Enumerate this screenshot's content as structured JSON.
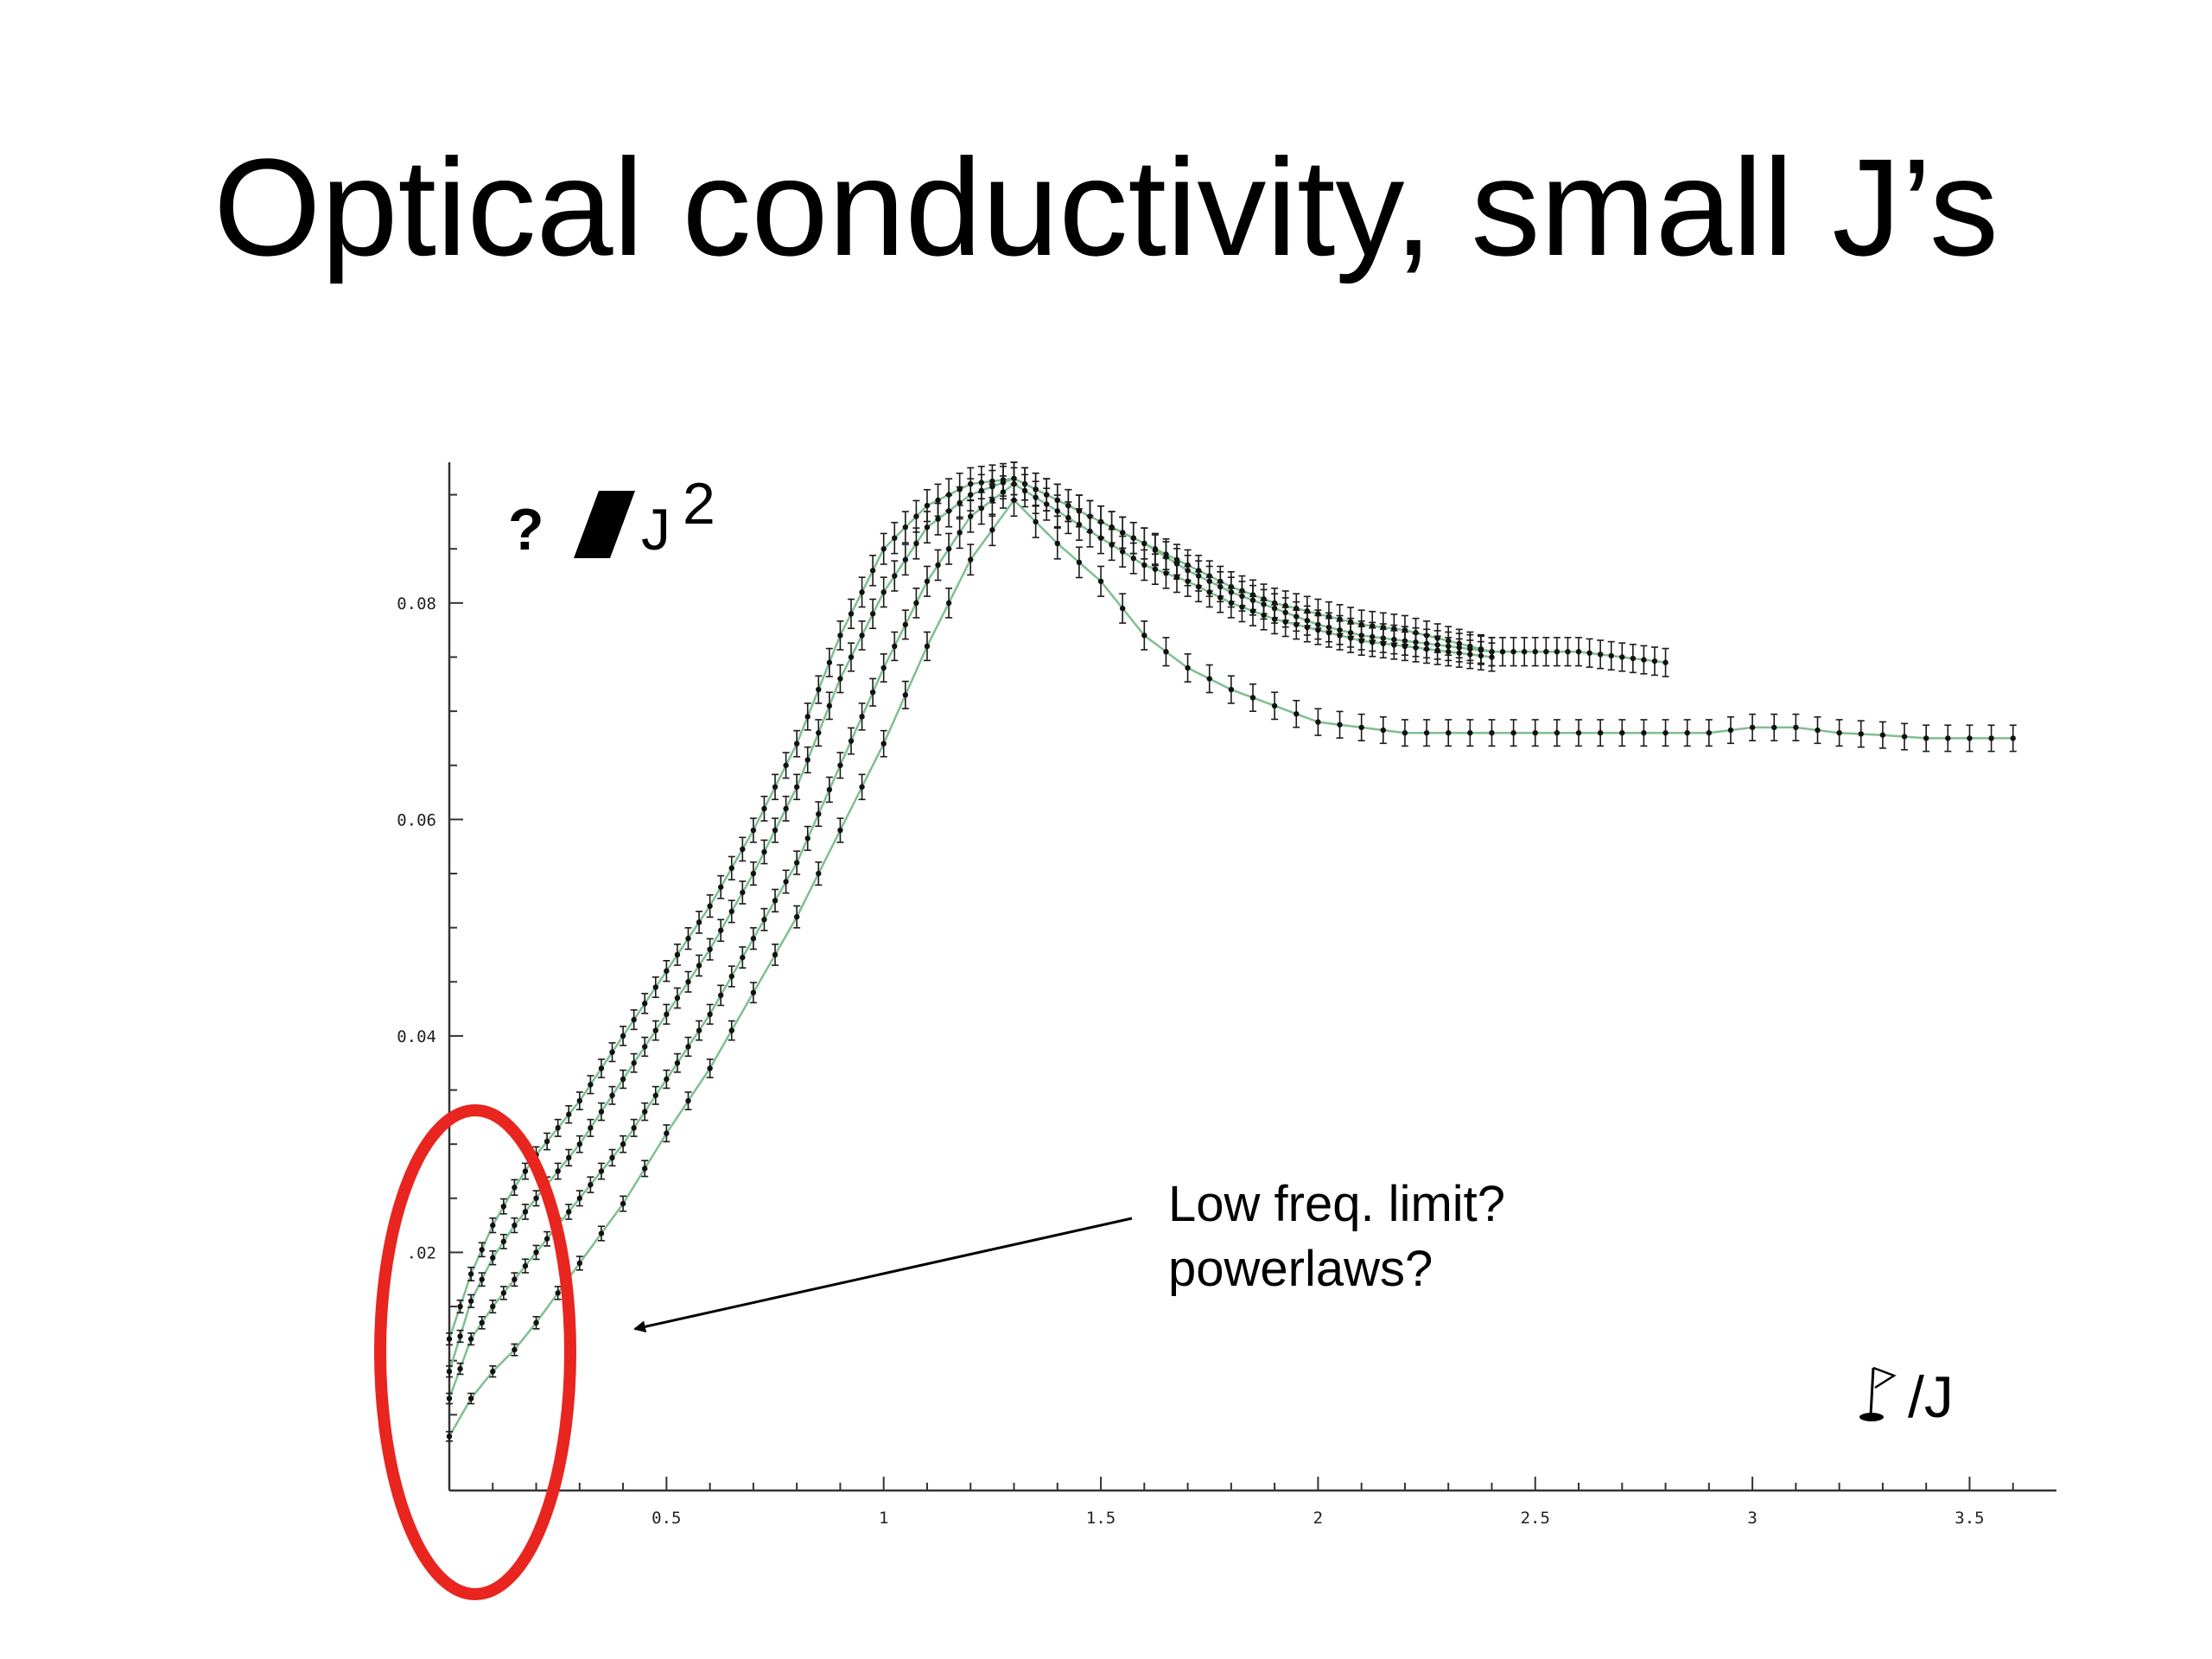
{
  "slide": {
    "title": "Optical conductivity, small J’s"
  },
  "chart_data": {
    "type": "line",
    "title": "",
    "ylabel": "? /J²",
    "ylabel_parts": {
      "symbol": "?",
      "denominator": "J",
      "exponent": "2"
    },
    "xlabel": "/J",
    "xlim": [
      0,
      3.7
    ],
    "ylim": [
      -0.002,
      0.093
    ],
    "x_ticks": [
      0.5,
      1,
      1.5,
      2,
      2.5,
      3,
      3.5
    ],
    "x_tick_labels": [
      "0.5",
      "1",
      "1.5",
      "2",
      "2.5",
      "3",
      "3.5"
    ],
    "y_ticks": [
      0.02,
      0.04,
      0.06,
      0.08
    ],
    "y_tick_labels": [
      ".02",
      "0.04",
      "0.06",
      "0.08"
    ],
    "grid": false,
    "error_bars": true,
    "colors": {
      "line": "#7fbf8f",
      "marker": "#111111",
      "errorbar": "#1a1a1a",
      "highlight": "#e8251f"
    },
    "series": [
      {
        "points": [
          [
            0,
            0.012
          ],
          [
            0.05,
            0.018
          ],
          [
            0.1,
            0.0225
          ],
          [
            0.15,
            0.026
          ],
          [
            0.2,
            0.029
          ],
          [
            0.3,
            0.034
          ],
          [
            0.4,
            0.04
          ],
          [
            0.5,
            0.046
          ],
          [
            0.6,
            0.052
          ],
          [
            0.7,
            0.059
          ],
          [
            0.8,
            0.067
          ],
          [
            0.9,
            0.077
          ],
          [
            1.0,
            0.085
          ],
          [
            1.1,
            0.089
          ],
          [
            1.2,
            0.091
          ],
          [
            1.3,
            0.0915
          ],
          [
            1.4,
            0.0895
          ],
          [
            1.5,
            0.0875
          ],
          [
            1.6,
            0.0855
          ],
          [
            1.7,
            0.0835
          ],
          [
            1.8,
            0.0815
          ],
          [
            1.9,
            0.08
          ],
          [
            2.0,
            0.079
          ],
          [
            2.1,
            0.078
          ],
          [
            2.2,
            0.0775
          ],
          [
            2.3,
            0.0765
          ],
          [
            2.4,
            0.0755
          ],
          [
            2.5,
            0.0755
          ],
          [
            2.6,
            0.0755
          ],
          [
            2.7,
            0.075
          ],
          [
            2.8,
            0.0745
          ]
        ]
      },
      {
        "points": [
          [
            0,
            0.009
          ],
          [
            0.05,
            0.0155
          ],
          [
            0.1,
            0.0195
          ],
          [
            0.15,
            0.0225
          ],
          [
            0.2,
            0.025
          ],
          [
            0.3,
            0.03
          ],
          [
            0.4,
            0.036
          ],
          [
            0.5,
            0.042
          ],
          [
            0.6,
            0.048
          ],
          [
            0.7,
            0.055
          ],
          [
            0.8,
            0.063
          ],
          [
            0.9,
            0.073
          ],
          [
            1.0,
            0.081
          ],
          [
            1.1,
            0.087
          ],
          [
            1.2,
            0.09
          ],
          [
            1.3,
            0.0915
          ],
          [
            1.4,
            0.0895
          ],
          [
            1.5,
            0.0875
          ],
          [
            1.6,
            0.0855
          ],
          [
            1.7,
            0.083
          ],
          [
            1.8,
            0.081
          ],
          [
            1.9,
            0.0795
          ],
          [
            2.0,
            0.078
          ],
          [
            2.1,
            0.077
          ],
          [
            2.2,
            0.0765
          ],
          [
            2.3,
            0.076
          ],
          [
            2.4,
            0.0755
          ]
        ]
      },
      {
        "points": [
          [
            0,
            0.0065
          ],
          [
            0.05,
            0.012
          ],
          [
            0.1,
            0.015
          ],
          [
            0.15,
            0.0175
          ],
          [
            0.2,
            0.02
          ],
          [
            0.3,
            0.025
          ],
          [
            0.4,
            0.03
          ],
          [
            0.5,
            0.036
          ],
          [
            0.6,
            0.042
          ],
          [
            0.7,
            0.049
          ],
          [
            0.8,
            0.056
          ],
          [
            0.9,
            0.065
          ],
          [
            1.0,
            0.074
          ],
          [
            1.1,
            0.082
          ],
          [
            1.2,
            0.088
          ],
          [
            1.3,
            0.091
          ],
          [
            1.4,
            0.0885
          ],
          [
            1.5,
            0.086
          ],
          [
            1.6,
            0.0835
          ],
          [
            1.7,
            0.082
          ],
          [
            1.8,
            0.08
          ],
          [
            1.9,
            0.0785
          ],
          [
            2.0,
            0.0775
          ],
          [
            2.1,
            0.0765
          ],
          [
            2.2,
            0.076
          ],
          [
            2.3,
            0.0755
          ],
          [
            2.4,
            0.075
          ]
        ]
      },
      {
        "points": [
          [
            0,
            0.003
          ],
          [
            0.05,
            0.0065
          ],
          [
            0.1,
            0.009
          ],
          [
            0.15,
            0.011
          ],
          [
            0.2,
            0.0135
          ],
          [
            0.3,
            0.019
          ],
          [
            0.4,
            0.0245
          ],
          [
            0.5,
            0.031
          ],
          [
            0.6,
            0.037
          ],
          [
            0.7,
            0.044
          ],
          [
            0.8,
            0.051
          ],
          [
            0.9,
            0.059
          ],
          [
            1.0,
            0.067
          ],
          [
            1.1,
            0.076
          ],
          [
            1.2,
            0.084
          ],
          [
            1.3,
            0.0895
          ],
          [
            1.4,
            0.0855
          ],
          [
            1.5,
            0.082
          ],
          [
            1.6,
            0.077
          ],
          [
            1.7,
            0.074
          ],
          [
            1.8,
            0.072
          ],
          [
            1.9,
            0.0705
          ],
          [
            2.0,
            0.069
          ],
          [
            2.1,
            0.0685
          ],
          [
            2.2,
            0.068
          ],
          [
            2.3,
            0.068
          ],
          [
            2.4,
            0.068
          ],
          [
            2.5,
            0.068
          ],
          [
            2.6,
            0.068
          ],
          [
            2.7,
            0.068
          ],
          [
            2.8,
            0.068
          ],
          [
            2.9,
            0.068
          ],
          [
            3.0,
            0.0685
          ],
          [
            3.1,
            0.0685
          ],
          [
            3.2,
            0.068
          ],
          [
            3.3,
            0.0678
          ],
          [
            3.4,
            0.0675
          ],
          [
            3.5,
            0.0675
          ],
          [
            3.6,
            0.0675
          ]
        ]
      }
    ],
    "annotation": {
      "lines": [
        "Low freq. limit?",
        "powerlaws?"
      ]
    }
  }
}
